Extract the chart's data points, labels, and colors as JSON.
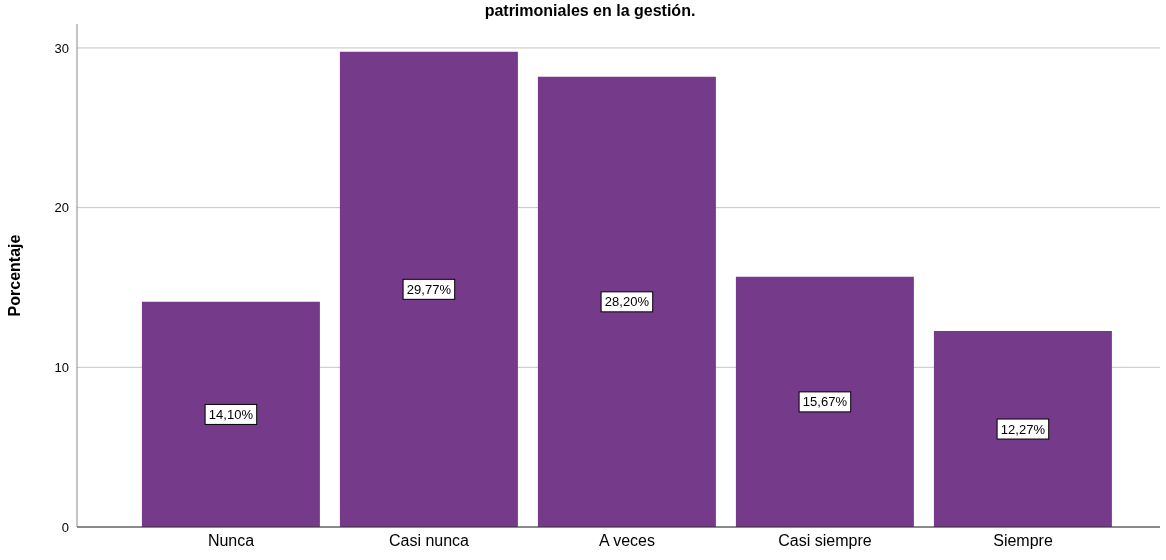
{
  "chart_data": {
    "type": "bar",
    "title": "patrimoniales en la gestión.",
    "ylabel": "Porcentaje",
    "categories": [
      "Nunca",
      "Casi nunca",
      "A veces",
      "Casi siempre",
      "Siempre"
    ],
    "values": [
      14.1,
      29.77,
      28.2,
      15.67,
      12.27
    ],
    "value_labels": [
      "14,10%",
      "29,77%",
      "28,20%",
      "15,67%",
      "12,27%"
    ],
    "color": "#763a8b",
    "ylim": [
      0,
      31.5
    ],
    "yticks": [
      0,
      10,
      20,
      30
    ],
    "grid": "y"
  }
}
